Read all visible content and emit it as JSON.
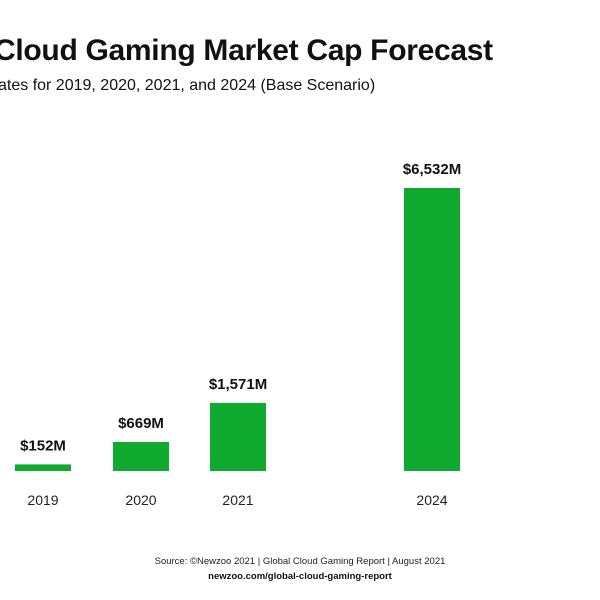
{
  "chart_data": {
    "type": "bar",
    "title": "Cloud Gaming Market Cap Forecast",
    "subtitle": "ates for 2019, 2020, 2021, and 2024 (Base Scenario)",
    "categories": [
      "2019",
      "2020",
      "2021",
      "2024"
    ],
    "values": [
      152,
      669,
      1571,
      6532
    ],
    "value_labels": [
      "$152M",
      "$669M",
      "$1,571M",
      "$6,532M"
    ],
    "ylim": [
      0,
      6532
    ],
    "grid": false,
    "bar_color": "#0faa2f"
  },
  "source": {
    "text": "Source: ©Newzoo 2021 | Global Cloud Gaming Report | August 2021",
    "url": "newzoo.com/global-cloud-gaming-report"
  }
}
